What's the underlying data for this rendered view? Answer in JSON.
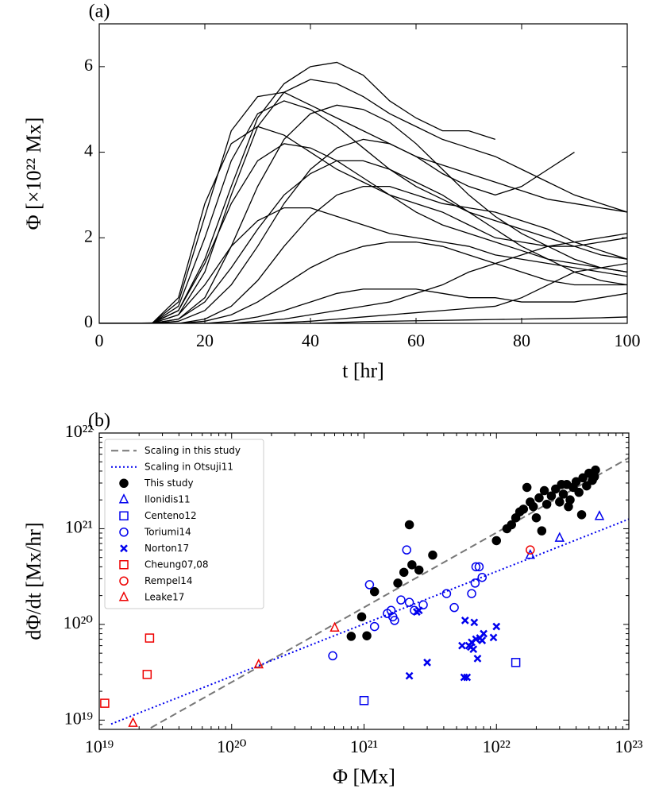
{
  "chart_data": [
    {
      "type": "line",
      "panel_label": "(a)",
      "xlabel": "t [hr]",
      "ylabel": "Φ [×10²² Mx]",
      "xlim": [
        0,
        100
      ],
      "ylim": [
        0,
        7
      ],
      "xticks": [
        0,
        20,
        40,
        60,
        80,
        100
      ],
      "yticks": [
        0,
        2,
        4,
        6
      ],
      "x": [
        0,
        5,
        10,
        15,
        20,
        25,
        30,
        35,
        40,
        45,
        50,
        55,
        60,
        65,
        70,
        75,
        80,
        85,
        90,
        95,
        100
      ],
      "series": [
        {
          "color": "#000000",
          "values": [
            0,
            0,
            0.01,
            0.3,
            1.5,
            3.2,
            4.8,
            5.6,
            6.0,
            6.1,
            5.8,
            5.2,
            4.8,
            4.5,
            4.5,
            4.3,
            null,
            null,
            null,
            null,
            null
          ]
        },
        {
          "color": "#000000",
          "values": [
            0,
            0,
            0,
            0.2,
            1.2,
            3,
            4.6,
            5.4,
            5.7,
            5.6,
            5.3,
            4.9,
            4.6,
            4.3,
            4.1,
            3.9,
            3.6,
            3.3,
            3.0,
            2.8,
            2.6
          ]
        },
        {
          "color": "#000000",
          "values": [
            0,
            0,
            0,
            0.4,
            2,
            3.8,
            4.9,
            5.2,
            5.0,
            4.6,
            4.1,
            3.6,
            3.2,
            2.9,
            2.6,
            2.4,
            2.2,
            2.0,
            1.8,
            1.6,
            1.5
          ]
        },
        {
          "color": "#000000",
          "values": [
            0,
            0,
            0,
            0.1,
            0.6,
            1.8,
            3.2,
            4.3,
            4.9,
            5.1,
            5.0,
            4.7,
            4.2,
            3.6,
            3.0,
            2.5,
            2.1,
            1.8,
            1.5,
            1.3,
            1.2
          ]
        },
        {
          "color": "#000000",
          "values": [
            0,
            0,
            0,
            0.3,
            1.4,
            2.8,
            3.8,
            4.2,
            4.1,
            3.8,
            3.4,
            3.0,
            2.6,
            2.3,
            2.1,
            1.9,
            1.7,
            1.5,
            1.4,
            1.3,
            1.2
          ]
        },
        {
          "color": "#000000",
          "values": [
            0,
            0,
            0,
            0.05,
            0.3,
            0.9,
            1.8,
            2.8,
            3.6,
            4.1,
            4.3,
            4.2,
            3.9,
            3.5,
            3.2,
            3.0,
            3.2,
            3.6,
            4.0,
            null,
            null
          ]
        },
        {
          "color": "#000000",
          "values": [
            0,
            0,
            0,
            0.2,
            0.9,
            1.8,
            2.4,
            2.7,
            2.7,
            2.5,
            2.3,
            2.1,
            2.0,
            1.9,
            1.8,
            1.6,
            1.5,
            1.4,
            1.3,
            1.2,
            1.1
          ]
        },
        {
          "color": "#000000",
          "values": [
            0,
            0,
            0,
            0,
            0.1,
            0.4,
            1.0,
            1.8,
            2.5,
            3.0,
            3.2,
            3.2,
            3.0,
            2.8,
            2.7,
            2.6,
            2.4,
            2.2,
            1.9,
            1.7,
            1.5
          ]
        },
        {
          "color": "#000000",
          "values": [
            0,
            0,
            0,
            0,
            0.05,
            0.2,
            0.5,
            0.9,
            1.3,
            1.6,
            1.8,
            1.9,
            1.9,
            1.8,
            1.6,
            1.4,
            1.2,
            1.0,
            0.9,
            0.9,
            0.9
          ]
        },
        {
          "color": "#000000",
          "values": [
            0,
            0,
            0,
            0,
            0,
            0.05,
            0.15,
            0.3,
            0.5,
            0.7,
            0.8,
            0.8,
            0.8,
            0.7,
            0.6,
            0.6,
            0.5,
            0.5,
            0.5,
            0.6,
            0.7
          ]
        },
        {
          "color": "#000000",
          "values": [
            0,
            0,
            0,
            0,
            0,
            0,
            0.05,
            0.1,
            0.2,
            0.3,
            0.4,
            0.5,
            0.7,
            0.9,
            1.2,
            1.4,
            1.6,
            1.8,
            1.9,
            2.0,
            2.1
          ]
        },
        {
          "color": "#000000",
          "values": [
            0,
            0,
            0,
            0.5,
            2.5,
            4.5,
            5.3,
            5.4,
            5.1,
            4.8,
            4.5,
            4.2,
            3.9,
            3.7,
            3.5,
            3.3,
            3.1,
            2.9,
            2.8,
            2.7,
            2.6
          ]
        },
        {
          "color": "#000000",
          "values": [
            0,
            0,
            0,
            0.1,
            0.5,
            1.3,
            2.2,
            3.0,
            3.5,
            3.8,
            3.8,
            3.6,
            3.3,
            3.0,
            2.6,
            2.2,
            1.8,
            1.5,
            1.2,
            1.0,
            0.9
          ]
        },
        {
          "color": "#000000",
          "values": [
            0,
            0,
            0,
            0,
            0,
            0,
            0,
            0.02,
            0.05,
            0.1,
            0.15,
            0.2,
            0.25,
            0.3,
            0.35,
            0.4,
            0.6,
            0.9,
            1.2,
            1.3,
            1.4
          ]
        },
        {
          "color": "#000000",
          "values": [
            0,
            0,
            0,
            0,
            0,
            0,
            0,
            0,
            0,
            0.02,
            0.04,
            0.05,
            0.06,
            0.07,
            0.08,
            0.09,
            0.1,
            0.11,
            0.12,
            0.13,
            0.15
          ]
        },
        {
          "color": "#000000",
          "values": [
            0,
            0,
            0,
            0.6,
            2.8,
            4.2,
            4.6,
            4.4,
            4.0,
            3.6,
            3.3,
            3.0,
            2.8,
            2.6,
            2.3,
            2.0,
            1.9,
            1.8,
            1.8,
            1.9,
            2.0
          ]
        }
      ]
    },
    {
      "type": "scatter",
      "panel_label": "(b)",
      "xlabel": "Φ [Mx]",
      "ylabel": "dΦ/dt [Mx/hr]",
      "xscale": "log",
      "yscale": "log",
      "legend": "upper left",
      "xlim": [
        1e+19,
        1e+23
      ],
      "ylim": [
        8e+18,
        1e+22
      ],
      "xticks": [
        {
          "value": 1e+19,
          "label": "10¹⁹"
        },
        {
          "value": 1e+20,
          "label": "10²⁰"
        },
        {
          "value": 1e+21,
          "label": "10²¹"
        },
        {
          "value": 1e+22,
          "label": "10²²"
        },
        {
          "value": 1e+23,
          "label": "10²³"
        }
      ],
      "yticks": [
        {
          "value": 1e+19,
          "label": "10¹⁹"
        },
        {
          "value": 1e+20,
          "label": "10²⁰"
        },
        {
          "value": 1e+21,
          "label": "10²¹"
        },
        {
          "value": 1e+22,
          "label": "10²²"
        }
      ],
      "series": [
        {
          "name": "Scaling in this study",
          "kind": "line",
          "style": "dashed",
          "color": "#777777",
          "x": [
            2.45e+19,
            1e+23
          ],
          "values": [
            8.3e+18,
            5.5e+21
          ]
        },
        {
          "name": "Scaling in Otsuji11",
          "kind": "line",
          "style": "dotted",
          "color": "#0000ee",
          "x": [
            1.23e+19,
            1e+23
          ],
          "values": [
            9.1e+18,
            1.26e+21
          ]
        },
        {
          "name": "This study",
          "marker": "o",
          "filled": true,
          "color": "#000000",
          "x": [
            8e+20,
            9.6e+20,
            1.05e+21,
            1.2e+21,
            1.8e+21,
            2e+21,
            2.2e+21,
            2.3e+21,
            2.6e+21,
            3.3e+21,
            1e+22,
            1.2e+22,
            1.4e+22,
            1.5e+22,
            1.6e+22,
            1.8e+22,
            1.9e+22,
            2.1e+22,
            2.3e+22,
            2.4e+22,
            2.6e+22,
            2.8e+22,
            3e+22,
            3.2e+22,
            3.4e+22,
            3.6e+22,
            3.8e+22,
            4e+22,
            4.2e+22,
            4.5e+22,
            4.8e+22,
            5e+22,
            5.3e+22,
            5.6e+22,
            4.4e+22,
            2.2e+22,
            1.7e+22,
            3.1e+22,
            5.5e+22,
            1.3e+22,
            2e+22,
            3.5e+22
          ],
          "values": [
            7.5e+19,
            1.2e+20,
            7.6e+19,
            2.2e+20,
            2.7e+20,
            3.5e+20,
            1.1e+21,
            4.2e+20,
            3.7e+20,
            5.3e+20,
            7.5e+20,
            1e+21,
            1.3e+21,
            1.5e+21,
            1.6e+21,
            1.9e+21,
            1.7e+21,
            2.1e+21,
            2.5e+21,
            1.8e+21,
            2.2e+21,
            2.6e+21,
            1.9e+21,
            2.3e+21,
            2.9e+21,
            2e+21,
            2.7e+21,
            3.1e+21,
            2.4e+21,
            3.4e+21,
            2.8e+21,
            3.8e+21,
            3.2e+21,
            4.1e+21,
            1.4e+21,
            9.5e+20,
            2.7e+21,
            2.9e+21,
            3.5e+21,
            1.1e+21,
            1.3e+21,
            1.7e+21
          ]
        },
        {
          "name": "Ilonidis11",
          "marker": "^",
          "color": "#0000ee",
          "x": [
            1.8e+22,
            3e+22,
            6e+22
          ],
          "values": [
            5.3e+20,
            8e+20,
            1.35e+21
          ]
        },
        {
          "name": "Centeno12",
          "marker": "s",
          "color": "#0000ee",
          "x": [
            1e+21,
            1.4e+22
          ],
          "values": [
            1.6e+19,
            4e+19
          ]
        },
        {
          "name": "Toriumi14",
          "marker": "o",
          "color": "#0000ee",
          "x": [
            5.8e+20,
            1.1e+21,
            1.2e+21,
            1.5e+21,
            1.6e+21,
            1.65e+21,
            1.7e+21,
            1.9e+21,
            2.1e+21,
            2.2e+21,
            2.4e+21,
            2.8e+21,
            4.2e+21,
            4.8e+21,
            6.5e+21,
            6.9e+21,
            7e+21,
            7.4e+21,
            7.8e+21
          ],
          "values": [
            4.7e+19,
            2.6e+20,
            9.5e+19,
            1.3e+20,
            1.4e+20,
            1.2e+20,
            1.1e+20,
            1.8e+20,
            6e+20,
            1.7e+20,
            1.4e+20,
            1.6e+20,
            2.1e+20,
            1.5e+20,
            2.1e+20,
            2.7e+20,
            4e+20,
            4e+20,
            3.1e+20
          ]
        },
        {
          "name": "Norton17",
          "marker": "x",
          "color": "#0000ee",
          "x": [
            2.2e+21,
            2.5e+21,
            2.6e+21,
            3e+21,
            5.5e+21,
            5.8e+21,
            5.7e+21,
            6e+21,
            6.2e+21,
            6.5e+21,
            6.7e+21,
            6.8e+21,
            7e+21,
            7.2e+21,
            7.5e+21,
            7.8e+21,
            8e+21,
            9.5e+21,
            1e+22,
            6.4e+21
          ],
          "values": [
            2.9e+19,
            1.35e+20,
            1.4e+20,
            4e+19,
            6e+19,
            1.1e+20,
            2.8e+19,
            2.8e+19,
            6e+19,
            6.5e+19,
            5.5e+19,
            1.05e+20,
            7e+19,
            4.4e+19,
            7.2e+19,
            6.8e+19,
            8e+19,
            7.3e+19,
            9.5e+19,
            5.8e+19
          ]
        },
        {
          "name": "Cheung07,08",
          "marker": "s",
          "color": "#ee0000",
          "x": [
            1.1e+19,
            2.3e+19,
            2.4e+19
          ],
          "values": [
            1.5e+19,
            3e+19,
            7.2e+19
          ]
        },
        {
          "name": "Rempel14",
          "marker": "o",
          "color": "#ee0000",
          "x": [
            1.8e+22
          ],
          "values": [
            6e+20
          ]
        },
        {
          "name": "Leake17",
          "marker": "^",
          "color": "#ee0000",
          "x": [
            1.8e+19,
            1.6e+20,
            6e+20
          ],
          "values": [
            9.3e+18,
            3.8e+19,
            9.2e+19
          ]
        }
      ]
    }
  ]
}
